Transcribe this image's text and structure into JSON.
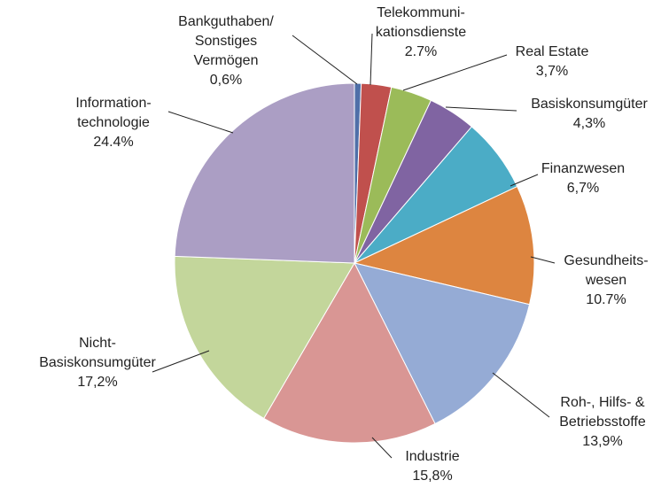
{
  "chart_data": {
    "type": "pie",
    "categories": [
      "Bankguthaben/\nSonstiges\nVermögen",
      "Telekommuni-\nkationsdienste",
      "Real Estate",
      "Basiskonsumgüter",
      "Finanzwesen",
      "Gesundheits-\nwesen",
      "Roh-, Hilfs- &\nBetriebsstoffe",
      "Industrie",
      "Nicht-\nBasiskonsumgüter",
      "Information-\ntechnologie"
    ],
    "values": [
      0.6,
      2.7,
      3.7,
      4.3,
      6.7,
      10.7,
      13.9,
      15.8,
      17.2,
      24.4
    ],
    "value_labels": [
      "0,6%",
      "2.7%",
      "3,7%",
      "4,3%",
      "6,7%",
      "10.7%",
      "13,9%",
      "15,8%",
      "17,2%",
      "24.4%"
    ],
    "colors": [
      "#4f6fa8",
      "#c0504d",
      "#9bbb59",
      "#8064a2",
      "#4bacc6",
      "#dd8540",
      "#95abd5",
      "#d99694",
      "#c3d69b",
      "#ab9ec4"
    ]
  }
}
